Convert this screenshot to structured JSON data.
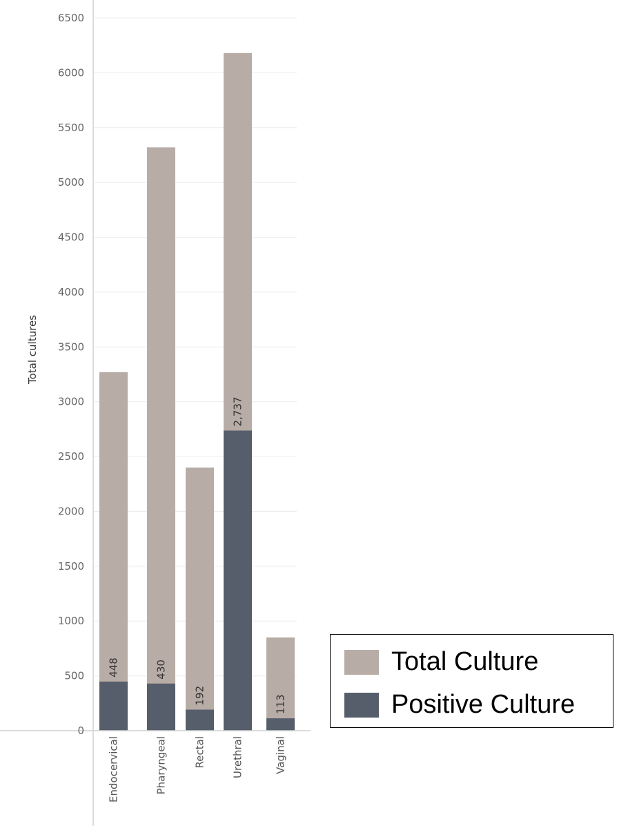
{
  "chart_data": {
    "type": "bar",
    "stacked": false,
    "overlapping": true,
    "ylabel": "Total cultures",
    "xlabel": "",
    "ylim": [
      0,
      6500
    ],
    "yticks": [
      0,
      500,
      1000,
      1500,
      2000,
      2500,
      3000,
      3500,
      4000,
      4500,
      5000,
      5500,
      6000,
      6500
    ],
    "categories": [
      "Endocervical",
      "Pharyngeal",
      "Rectal",
      "Urethral",
      "Vaginal"
    ],
    "series": [
      {
        "name": "Total Culture",
        "values": [
          3270,
          5320,
          2400,
          6180,
          850
        ]
      },
      {
        "name": "Positive Culture",
        "values": [
          448,
          430,
          192,
          2737,
          113
        ],
        "data_labels": [
          "448",
          "430",
          "192",
          "2,737",
          "113"
        ]
      }
    ],
    "grid": "horizontal",
    "legend_position": "bottom-right"
  },
  "colors": {
    "total": "#b8aca6",
    "positive": "#575e6b",
    "grid": "#ececec",
    "axis": "#d0d0d0"
  }
}
